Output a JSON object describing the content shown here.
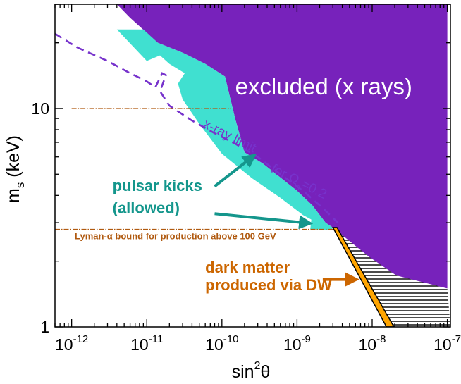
{
  "chart_data": {
    "type": "area",
    "x_scale": "log",
    "y_scale": "log",
    "xlim": [
      6e-13,
      1.1e-07
    ],
    "ylim": [
      1,
      30
    ],
    "xlabel": {
      "base": "sin",
      "sup": "2",
      "tail": "θ"
    },
    "ylabel": {
      "main": "m",
      "sub": "s",
      "tail": " (keV)"
    },
    "x_ticks": [
      {
        "value": 1e-12,
        "base": "10",
        "exp": "-12"
      },
      {
        "value": 1e-11,
        "base": "10",
        "exp": "-11"
      },
      {
        "value": 1e-10,
        "base": "10",
        "exp": "-10"
      },
      {
        "value": 1e-09,
        "base": "10",
        "exp": "-9"
      },
      {
        "value": 1e-08,
        "base": "10",
        "exp": "-8"
      },
      {
        "value": 1e-07,
        "base": "10",
        "exp": "-7"
      }
    ],
    "y_ticks": [
      {
        "value": 1,
        "label": "1"
      },
      {
        "value": 10,
        "label": "10"
      }
    ],
    "colors": {
      "excluded": "#7722bb",
      "pulsar": "#40e0d0",
      "xray_limit": "#7733cc",
      "lyman": "#b05a10",
      "dm_fill": "#ffa500",
      "dm_text": "#cc6600",
      "pulsar_text": "#14968c",
      "excluded_text": "#ffffff"
    },
    "regions": [
      {
        "name": "excluded (x rays)",
        "points": [
          [
            4e-12,
            30
          ],
          [
            1e-07,
            30
          ],
          [
            1e-07,
            1.5
          ],
          [
            2.1e-08,
            1.72
          ],
          [
            9e-09,
            2.1
          ],
          [
            3e-09,
            2.85
          ],
          [
            2.4e-09,
            3.0
          ],
          [
            1.6e-09,
            3.6
          ],
          [
            1e-09,
            4.2
          ],
          [
            3.5e-10,
            5.6
          ],
          [
            2e-10,
            6.3
          ],
          [
            1.5e-10,
            9
          ],
          [
            1.1e-10,
            14
          ],
          [
            6e-11,
            16
          ],
          [
            3e-11,
            18
          ],
          [
            1.4e-11,
            20
          ],
          [
            6e-12,
            26
          ]
        ]
      },
      {
        "name": "pulsar kicks (allowed)",
        "points": [
          [
            4e-12,
            23
          ],
          [
            9e-12,
            23
          ],
          [
            1.4e-11,
            20
          ],
          [
            3e-11,
            18
          ],
          [
            6e-11,
            16
          ],
          [
            1.1e-10,
            14
          ],
          [
            1.5e-10,
            9
          ],
          [
            2e-10,
            6.3
          ],
          [
            3.5e-10,
            5.6
          ],
          [
            1e-09,
            4.2
          ],
          [
            1.6e-09,
            3.6
          ],
          [
            2.4e-09,
            3.0
          ],
          [
            3e-09,
            2.85
          ],
          [
            2.9e-09,
            2.78
          ],
          [
            1.5e-09,
            2.8
          ],
          [
            1.55e-09,
            3.1
          ],
          [
            1.2e-09,
            3.25
          ],
          [
            6e-10,
            3.9
          ],
          [
            2.5e-10,
            4.8
          ],
          [
            1e-10,
            6.2
          ],
          [
            5e-11,
            8.5
          ],
          [
            3e-11,
            11
          ],
          [
            2.6e-11,
            13
          ],
          [
            3.2e-11,
            14.5
          ],
          [
            2e-11,
            16
          ],
          [
            1.5e-11,
            17.5
          ],
          [
            1e-11,
            16.5
          ]
        ]
      }
    ],
    "dw_band": {
      "name": "dark matter produced via DW",
      "left": [
        [
          3e-09,
          2.85
        ],
        [
          1.55e-08,
          1
        ]
      ],
      "right": [
        [
          3.4e-09,
          2.85
        ],
        [
          1.95e-08,
          1
        ]
      ],
      "hatch_corner": [
        1e-07,
        1.5
      ]
    },
    "series": [
      {
        "name": "x-ray limit for Ω_s=0.2",
        "style": "dashed",
        "points": [
          [
            6e-13,
            22
          ],
          [
            1.2e-12,
            19
          ],
          [
            3e-12,
            16.5
          ],
          [
            6e-12,
            14.5
          ],
          [
            1e-11,
            13.3
          ],
          [
            1.3e-11,
            12.5
          ],
          [
            1.6e-11,
            14.5
          ],
          [
            1.8e-11,
            14.2
          ],
          [
            1.5e-11,
            12
          ],
          [
            2e-11,
            10.3
          ],
          [
            4e-11,
            8.8
          ],
          [
            8e-11,
            7.7
          ],
          [
            1.5e-10,
            6.9
          ],
          [
            3e-10,
            6.0
          ],
          [
            6e-10,
            5.0
          ],
          [
            1.2e-09,
            4.2
          ],
          [
            2.2e-09,
            3.5
          ],
          [
            3.5e-09,
            3.0
          ]
        ]
      },
      {
        "name": "Lyman-α bound for production above 100 GeV",
        "style": "dashdot",
        "points": [
          [
            6e-13,
            2.8
          ],
          [
            3e-09,
            2.8
          ]
        ]
      },
      {
        "name": "",
        "style": "dashdot",
        "points": [
          [
            1e-12,
            10
          ],
          [
            1.3e-10,
            10
          ]
        ]
      }
    ],
    "annotations": [
      {
        "text": "excluded (x rays)",
        "color": "excluded_text",
        "x": 1.5e-10,
        "y": 11.6,
        "anchor": "start",
        "size": 33
      },
      {
        "text": "pulsar kicks",
        "color": "pulsar_text",
        "x": 3.5e-12,
        "y": 4.2,
        "anchor": "start",
        "size": 22,
        "bold": true
      },
      {
        "text": "(allowed)",
        "color": "pulsar_text",
        "x": 3.5e-12,
        "y": 3.32,
        "anchor": "start",
        "size": 22,
        "bold": true
      },
      {
        "text": "Lyman-α bound for production above 100 GeV",
        "color": "lyman",
        "x": 1.1e-12,
        "y": 2.52,
        "anchor": "start",
        "size": 13,
        "bold": true
      },
      {
        "text": "dark matter",
        "color": "dm_text",
        "x": 6e-11,
        "y": 1.77,
        "anchor": "start",
        "size": 22,
        "bold": true
      },
      {
        "text": "produced via DW",
        "color": "dm_text",
        "x": 6e-11,
        "y": 1.47,
        "anchor": "start",
        "size": 22,
        "bold": true
      },
      {
        "text": "x-ray limit",
        "color": "xray_limit",
        "x": 1.2e-10,
        "y": 7.2,
        "anchor": "middle",
        "size": 19,
        "rotate": 27
      },
      {
        "text": "for Ω",
        "sub": "s",
        "tail": "=0.2",
        "color": "xray_limit",
        "x": 1e-09,
        "y": 4.45,
        "anchor": "middle",
        "size": 19,
        "rotate": 27
      }
    ],
    "arrows": [
      {
        "from": [
          8e-11,
          4.4
        ],
        "to": [
          2.7e-10,
          6.1
        ],
        "color": "pulsar_text"
      },
      {
        "from": [
          8e-11,
          3.3
        ],
        "to": [
          1.5e-09,
          2.98
        ],
        "color": "pulsar_text"
      },
      {
        "from": [
          2.2e-09,
          1.65
        ],
        "to": [
          6.2e-09,
          1.65
        ],
        "color": "dm_text"
      }
    ]
  }
}
